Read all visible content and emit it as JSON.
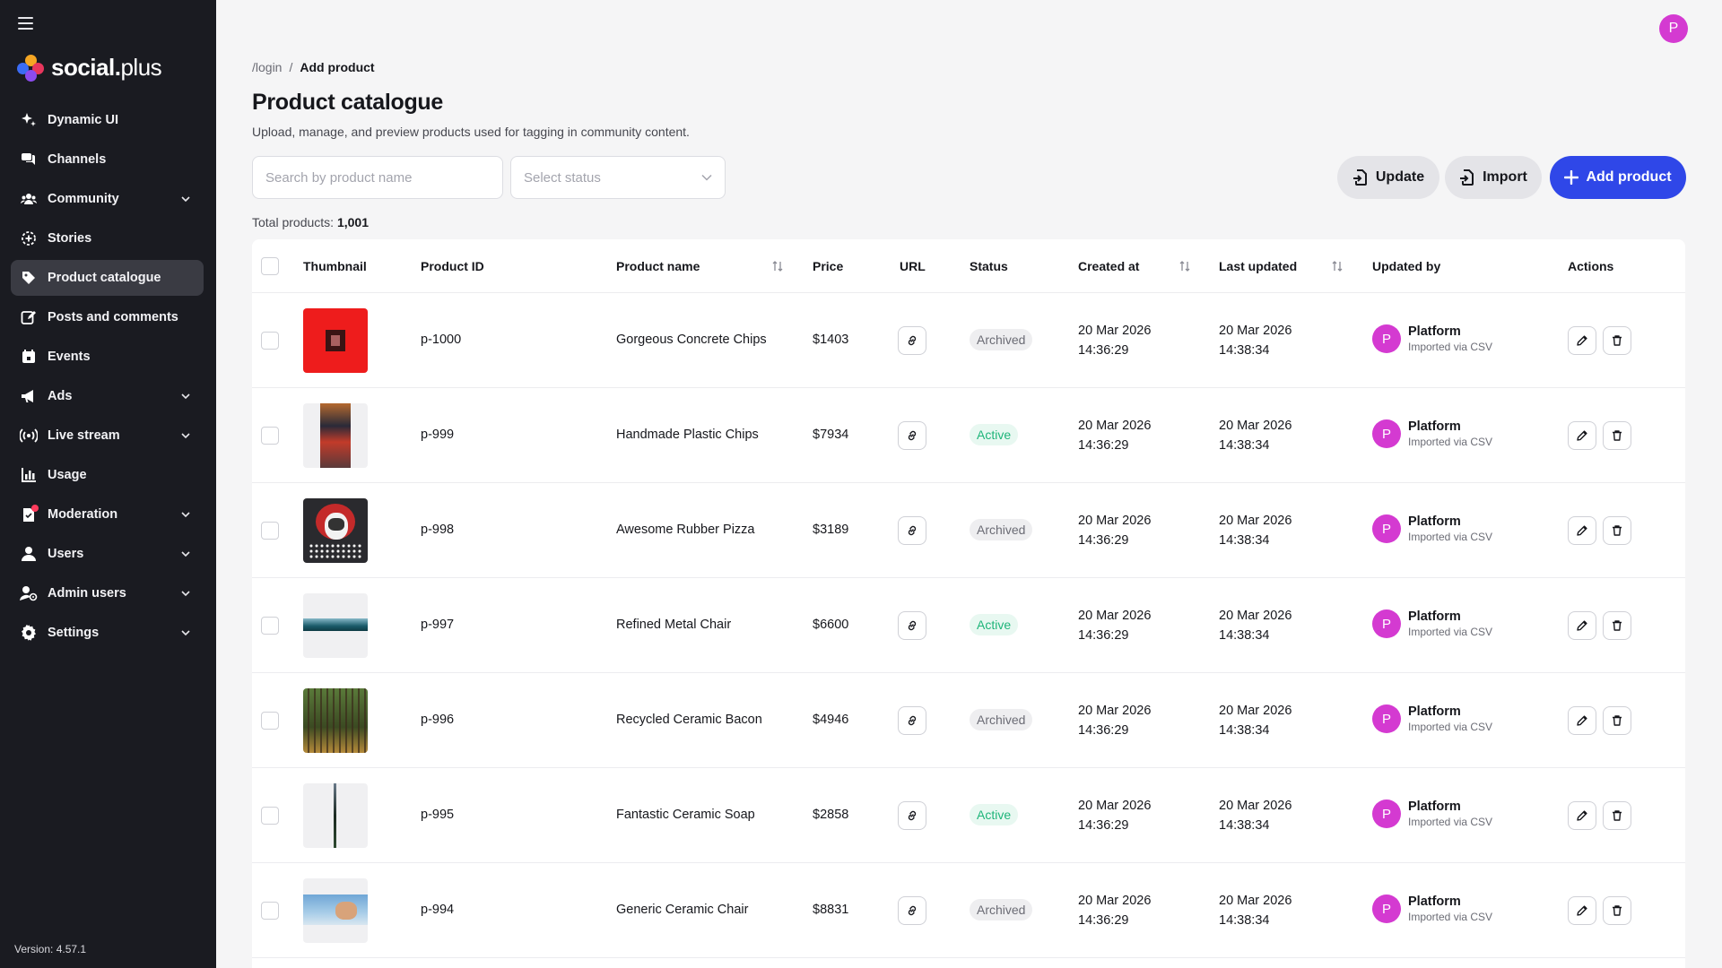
{
  "sidebar": {
    "logo": {
      "bold": "social",
      "dot": ".",
      "light": "plus"
    },
    "items": [
      {
        "label": "Dynamic UI",
        "icon": "sparkle-icon",
        "chevron": false,
        "active": false
      },
      {
        "label": "Channels",
        "icon": "chat-bubbles-icon",
        "chevron": false,
        "active": false
      },
      {
        "label": "Community",
        "icon": "people-icon",
        "chevron": true,
        "active": false
      },
      {
        "label": "Stories",
        "icon": "stories-icon",
        "chevron": false,
        "active": false
      },
      {
        "label": "Product catalogue",
        "icon": "tag-icon",
        "chevron": false,
        "active": true
      },
      {
        "label": "Posts and comments",
        "icon": "edit-icon",
        "chevron": false,
        "active": false
      },
      {
        "label": "Events",
        "icon": "calendar-icon",
        "chevron": false,
        "active": false
      },
      {
        "label": "Ads",
        "icon": "megaphone-icon",
        "chevron": true,
        "active": false
      },
      {
        "label": "Live stream",
        "icon": "broadcast-icon",
        "chevron": true,
        "active": false
      },
      {
        "label": "Usage",
        "icon": "bar-chart-icon",
        "chevron": false,
        "active": false
      },
      {
        "label": "Moderation",
        "icon": "moderation-icon",
        "chevron": true,
        "active": false
      },
      {
        "label": "Users",
        "icon": "user-icon",
        "chevron": true,
        "active": false
      },
      {
        "label": "Admin users",
        "icon": "admin-user-icon",
        "chevron": true,
        "active": false
      },
      {
        "label": "Settings",
        "icon": "gear-icon",
        "chevron": true,
        "active": false
      }
    ],
    "version": "Version: 4.57.1"
  },
  "header": {
    "avatar_initial": "P",
    "breadcrumb": {
      "parent": "/login",
      "separator": "/",
      "current": "Add product"
    },
    "title": "Product catalogue",
    "description": "Upload, manage, and preview products used for tagging in community content."
  },
  "toolbar": {
    "search_placeholder": "Search by product name",
    "status_placeholder": "Select status",
    "update_label": "Update",
    "import_label": "Import",
    "add_label": "Add product"
  },
  "summary": {
    "total_label": "Total products:",
    "total_value": "1,001"
  },
  "table": {
    "columns": {
      "thumbnail": "Thumbnail",
      "product_id": "Product ID",
      "product_name": "Product name",
      "price": "Price",
      "url": "URL",
      "status": "Status",
      "created_at": "Created at",
      "last_updated": "Last updated",
      "updated_by": "Updated by",
      "actions": "Actions"
    },
    "rows": [
      {
        "id": "p-1000",
        "name": "Gorgeous Concrete Chips",
        "price": "$1403",
        "status": "Archived",
        "created_date": "20 Mar 2026",
        "created_time": "14:36:29",
        "updated_date": "20 Mar 2026",
        "updated_time": "14:38:34",
        "by_initial": "P",
        "by_name": "Platform",
        "by_sub": "Imported via CSV"
      },
      {
        "id": "p-999",
        "name": "Handmade Plastic Chips",
        "price": "$7934",
        "status": "Active",
        "created_date": "20 Mar 2026",
        "created_time": "14:36:29",
        "updated_date": "20 Mar 2026",
        "updated_time": "14:38:34",
        "by_initial": "P",
        "by_name": "Platform",
        "by_sub": "Imported via CSV"
      },
      {
        "id": "p-998",
        "name": "Awesome Rubber Pizza",
        "price": "$3189",
        "status": "Archived",
        "created_date": "20 Mar 2026",
        "created_time": "14:36:29",
        "updated_date": "20 Mar 2026",
        "updated_time": "14:38:34",
        "by_initial": "P",
        "by_name": "Platform",
        "by_sub": "Imported via CSV"
      },
      {
        "id": "p-997",
        "name": "Refined Metal Chair",
        "price": "$6600",
        "status": "Active",
        "created_date": "20 Mar 2026",
        "created_time": "14:36:29",
        "updated_date": "20 Mar 2026",
        "updated_time": "14:38:34",
        "by_initial": "P",
        "by_name": "Platform",
        "by_sub": "Imported via CSV"
      },
      {
        "id": "p-996",
        "name": "Recycled Ceramic Bacon",
        "price": "$4946",
        "status": "Archived",
        "created_date": "20 Mar 2026",
        "created_time": "14:36:29",
        "updated_date": "20 Mar 2026",
        "updated_time": "14:38:34",
        "by_initial": "P",
        "by_name": "Platform",
        "by_sub": "Imported via CSV"
      },
      {
        "id": "p-995",
        "name": "Fantastic Ceramic Soap",
        "price": "$2858",
        "status": "Active",
        "created_date": "20 Mar 2026",
        "created_time": "14:36:29",
        "updated_date": "20 Mar 2026",
        "updated_time": "14:38:34",
        "by_initial": "P",
        "by_name": "Platform",
        "by_sub": "Imported via CSV"
      },
      {
        "id": "p-994",
        "name": "Generic Ceramic Chair",
        "price": "$8831",
        "status": "Archived",
        "created_date": "20 Mar 2026",
        "created_time": "14:36:29",
        "updated_date": "20 Mar 2026",
        "updated_time": "14:38:34",
        "by_initial": "P",
        "by_name": "Platform",
        "by_sub": "Imported via CSV"
      }
    ]
  },
  "colors": {
    "sidebar_bg": "#1a1b21",
    "accent": "#2f47e8",
    "avatar": "#d43ad1",
    "active_status": "#1fb57a",
    "archived_status": "#6b6c75"
  }
}
